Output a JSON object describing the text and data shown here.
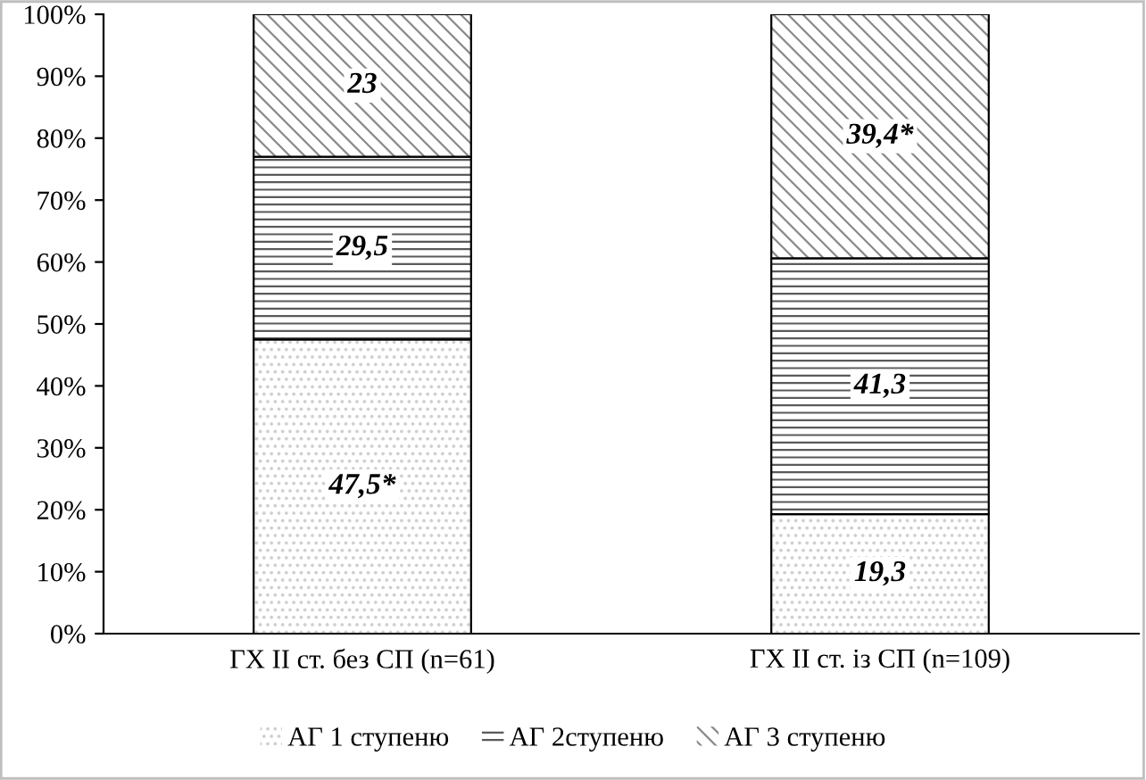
{
  "chart_data": {
    "type": "bar",
    "stacked": true,
    "categories": [
      "ГХ II ст. без СП (n=61)",
      "ГХ II ст. із СП (n=109)"
    ],
    "series": [
      {
        "name": "АГ 1 ступеню",
        "color": "#d0d0d0",
        "values": [
          47.5,
          19.3
        ],
        "value_labels": [
          "47,5*",
          "19,3"
        ]
      },
      {
        "name": "АГ 2ступеню",
        "color": "#5a5a5a",
        "values": [
          29.5,
          41.3
        ],
        "value_labels": [
          "29,5",
          "41,3"
        ]
      },
      {
        "name": "АГ 3 ступеню",
        "color": "#8a8a8a",
        "values": [
          23,
          39.4
        ],
        "value_labels": [
          "23",
          "39,4*"
        ]
      }
    ],
    "ylim": [
      0,
      100
    ],
    "yticks": [
      {
        "value": 0,
        "label": "0%"
      },
      {
        "value": 10,
        "label": "10%"
      },
      {
        "value": 20,
        "label": "20%"
      },
      {
        "value": 30,
        "label": "30%"
      },
      {
        "value": 40,
        "label": "40%"
      },
      {
        "value": 50,
        "label": "50%"
      },
      {
        "value": 60,
        "label": "60%"
      },
      {
        "value": 70,
        "label": "70%"
      },
      {
        "value": 80,
        "label": "80%"
      },
      {
        "value": 90,
        "label": "90%"
      },
      {
        "value": 100,
        "label": "100%"
      }
    ],
    "grid": false,
    "legend": "bottom"
  }
}
